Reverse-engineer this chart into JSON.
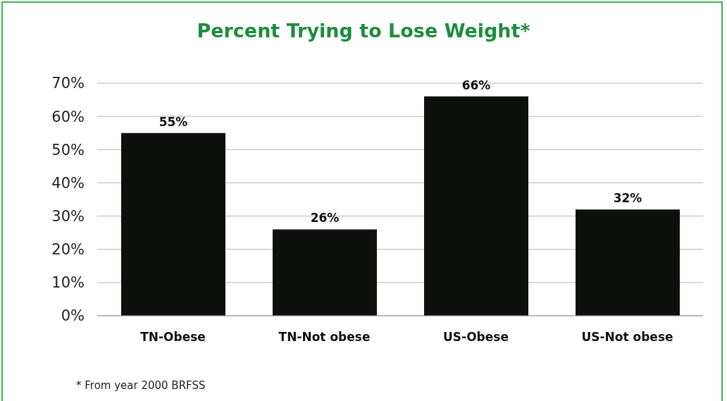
{
  "chart_data": {
    "type": "bar",
    "title": "Percent Trying to Lose Weight*",
    "categories": [
      "TN-Obese",
      "TN-Not obese",
      "US-Obese",
      "US-Not obese"
    ],
    "values": [
      55,
      26,
      66,
      32
    ],
    "color": "#0e100e",
    "value_labels": [
      "55%",
      "26%",
      "66%",
      "32%"
    ],
    "ylim": [
      0,
      70
    ],
    "yticks": [
      {
        "value": 0,
        "label": "0%"
      },
      {
        "value": 10,
        "label": "10%"
      },
      {
        "value": 20,
        "label": "20%"
      },
      {
        "value": 30,
        "label": "30%"
      },
      {
        "value": 40,
        "label": "40%"
      },
      {
        "value": 50,
        "label": "50%"
      },
      {
        "value": 60,
        "label": "60%"
      },
      {
        "value": 70,
        "label": "70%"
      }
    ],
    "grid": "y",
    "annotations": [
      "* From year 2000 BRFSS"
    ]
  }
}
